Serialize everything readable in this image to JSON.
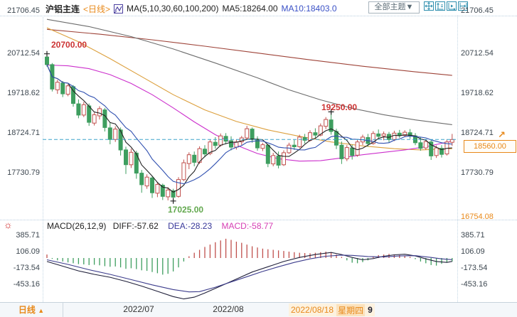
{
  "header": {
    "symbol": "沪铝主连",
    "period_tag": "<日线>",
    "ma_group": "MA(5,10,30,60,100,200)",
    "ma5_label": "MA5:18264.00",
    "ma10_label": "MA10:18403.0",
    "theme_dropdown": "全部主题▼"
  },
  "axes": {
    "price": [
      "21706.45",
      "20712.54",
      "19718.62",
      "18724.71",
      "17730.79"
    ],
    "price_lower": "16754.08",
    "macd": [
      "385.71",
      "106.09",
      "-173.54",
      "-453.16"
    ]
  },
  "price_tag": "18560.00",
  "jump_arrow": "↗",
  "sun_icon": "☼",
  "macd_header": {
    "title": "MACD(26,12,9)",
    "diff": "DIFF:-57.62",
    "dea": "DEA:-28.23",
    "macd": "MACD:-58.77"
  },
  "bottom": {
    "period": "日线",
    "period_arrow": "▲",
    "months": [
      "2022/07",
      "2022/08"
    ],
    "date": "2022/08/18",
    "weekday": "星期四",
    "session": "9"
  },
  "chart_data": {
    "type": "candlestick+macd",
    "title": "沪铝主连 日线",
    "legend": [
      "MA5",
      "MA10",
      "MA30",
      "MA60",
      "MA100",
      "MA200"
    ],
    "price_axis_ticks": [
      21706.45,
      20712.54,
      19718.62,
      18724.71,
      17730.79,
      16754.08
    ],
    "macd_axis_ticks": [
      385.71,
      106.09,
      -173.54,
      -453.16
    ],
    "x_axis_labels": [
      "2022/07",
      "2022/08"
    ],
    "crosshair_date": "2022/08/18 星期四 9",
    "last_price": 18560.0,
    "colors": {
      "up": "#c0504d",
      "down": "#3e9e5f",
      "ma5": "#222222",
      "ma10": "#3050b0",
      "ma30": "#cc2fcc",
      "ma60": "#dc9f3c",
      "ma100": "#6d6d6d",
      "ma200": "#9e4338",
      "dash": "#3fa3cc",
      "diff": "#20203a",
      "dea": "#3c3c8c"
    },
    "annotations": [
      {
        "label": "20700.00",
        "index": 0,
        "price": 20700,
        "anchor": "high",
        "color": "#cc3333"
      },
      {
        "label": "19250.00",
        "index": 54,
        "price": 19250,
        "anchor": "high",
        "color": "#cc3333"
      },
      {
        "label": "17025.00",
        "index": 24,
        "price": 17025,
        "anchor": "low",
        "color": "#62a84e"
      }
    ],
    "candles": [
      [
        20620,
        20700,
        20380,
        20430
      ],
      [
        20430,
        20470,
        19760,
        19820
      ],
      [
        19800,
        20050,
        19700,
        19990
      ],
      [
        19970,
        20020,
        19620,
        19700
      ],
      [
        19690,
        19940,
        19640,
        19900
      ],
      [
        19880,
        19920,
        19380,
        19460
      ],
      [
        19450,
        19560,
        19090,
        19170
      ],
      [
        19170,
        19500,
        19120,
        19430
      ],
      [
        19400,
        19460,
        18900,
        18990
      ],
      [
        18970,
        19230,
        18910,
        19180
      ],
      [
        19150,
        19390,
        19060,
        19330
      ],
      [
        19300,
        19350,
        18760,
        18860
      ],
      [
        18850,
        18980,
        18440,
        18560
      ],
      [
        18560,
        18890,
        18500,
        18820
      ],
      [
        18800,
        18860,
        18160,
        18300
      ],
      [
        18300,
        18380,
        17700,
        17930
      ],
      [
        17930,
        18330,
        17850,
        18240
      ],
      [
        18220,
        18280,
        17580,
        17720
      ],
      [
        17720,
        17800,
        17230,
        17430
      ],
      [
        17400,
        17690,
        17330,
        17620
      ],
      [
        17600,
        17640,
        17100,
        17230
      ],
      [
        17220,
        17500,
        17120,
        17440
      ],
      [
        17420,
        17460,
        17050,
        17140
      ],
      [
        17130,
        17370,
        17040,
        17300
      ],
      [
        17280,
        17330,
        17025,
        17120
      ],
      [
        17140,
        17620,
        17110,
        17560
      ],
      [
        17560,
        18060,
        17520,
        17980
      ],
      [
        17960,
        18240,
        17820,
        18180
      ],
      [
        18170,
        18260,
        17890,
        17990
      ],
      [
        17990,
        18390,
        17950,
        18330
      ],
      [
        18320,
        18420,
        18120,
        18200
      ],
      [
        18210,
        18560,
        18170,
        18500
      ],
      [
        18490,
        18620,
        18330,
        18410
      ],
      [
        18420,
        18710,
        18380,
        18650
      ],
      [
        18640,
        18720,
        18440,
        18520
      ],
      [
        18530,
        18640,
        18290,
        18370
      ],
      [
        18370,
        18560,
        18310,
        18500
      ],
      [
        18500,
        18650,
        18420,
        18600
      ],
      [
        18600,
        18900,
        18560,
        18830
      ],
      [
        18820,
        18860,
        18480,
        18560
      ],
      [
        18550,
        18640,
        18280,
        18350
      ],
      [
        18340,
        18480,
        18270,
        18430
      ],
      [
        18420,
        18450,
        17870,
        17960
      ],
      [
        17950,
        18230,
        17890,
        18160
      ],
      [
        18150,
        18260,
        17840,
        17920
      ],
      [
        17930,
        18290,
        17900,
        18230
      ],
      [
        18230,
        18480,
        18200,
        18420
      ],
      [
        18420,
        18550,
        18300,
        18380
      ],
      [
        18380,
        18680,
        18350,
        18620
      ],
      [
        18610,
        18700,
        18460,
        18540
      ],
      [
        18540,
        18790,
        18510,
        18730
      ],
      [
        18730,
        18840,
        18600,
        18670
      ],
      [
        18670,
        18960,
        18640,
        18900
      ],
      [
        18890,
        19120,
        18820,
        19060
      ],
      [
        19050,
        19250,
        18680,
        18760
      ],
      [
        18760,
        18830,
        18320,
        18420
      ],
      [
        18420,
        18510,
        17950,
        18080
      ],
      [
        18080,
        18420,
        18020,
        18360
      ],
      [
        18350,
        18430,
        18060,
        18160
      ],
      [
        18170,
        18560,
        18130,
        18500
      ],
      [
        18500,
        18680,
        18420,
        18620
      ],
      [
        18610,
        18700,
        18380,
        18460
      ],
      [
        18460,
        18770,
        18430,
        18710
      ],
      [
        18700,
        18810,
        18570,
        18640
      ],
      [
        18650,
        18760,
        18540,
        18700
      ],
      [
        18690,
        18750,
        18480,
        18560
      ],
      [
        18560,
        18780,
        18520,
        18720
      ],
      [
        18720,
        18800,
        18600,
        18660
      ],
      [
        18660,
        18790,
        18620,
        18740
      ],
      [
        18730,
        18820,
        18580,
        18650
      ],
      [
        18650,
        18720,
        18420,
        18480
      ],
      [
        18480,
        18620,
        18280,
        18340
      ],
      [
        18350,
        18570,
        18300,
        18510
      ],
      [
        18500,
        18540,
        18050,
        18150
      ],
      [
        18160,
        18410,
        18100,
        18350
      ],
      [
        18340,
        18420,
        18110,
        18190
      ],
      [
        18200,
        18560,
        18160,
        18500
      ],
      [
        18490,
        18700,
        18400,
        18560
      ]
    ],
    "ma_overlays": [
      {
        "name": "MA200",
        "color": "#9e4338",
        "points": [
          [
            0,
            21310
          ],
          [
            10,
            21190
          ],
          [
            20,
            21050
          ],
          [
            30,
            20890
          ],
          [
            40,
            20720
          ],
          [
            50,
            20550
          ],
          [
            60,
            20390
          ],
          [
            70,
            20250
          ],
          [
            77,
            20160
          ]
        ]
      },
      {
        "name": "MA100",
        "color": "#6d6d6d",
        "points": [
          [
            0,
            21560
          ],
          [
            8,
            21380
          ],
          [
            16,
            21130
          ],
          [
            24,
            20820
          ],
          [
            32,
            20470
          ],
          [
            40,
            20100
          ],
          [
            46,
            19800
          ],
          [
            52,
            19550
          ],
          [
            58,
            19340
          ],
          [
            64,
            19180
          ],
          [
            70,
            19050
          ],
          [
            77,
            18930
          ]
        ]
      },
      {
        "name": "MA60",
        "color": "#dc9f3c",
        "points": [
          [
            0,
            21350
          ],
          [
            6,
            21000
          ],
          [
            12,
            20580
          ],
          [
            18,
            20130
          ],
          [
            24,
            19680
          ],
          [
            30,
            19300
          ],
          [
            36,
            19010
          ],
          [
            42,
            18800
          ],
          [
            48,
            18640
          ],
          [
            54,
            18500
          ],
          [
            60,
            18400
          ],
          [
            66,
            18330
          ],
          [
            71,
            18300
          ],
          [
            77,
            18330
          ]
        ]
      },
      {
        "name": "MA30",
        "color": "#cc2fcc",
        "points": [
          [
            0,
            20420
          ],
          [
            4,
            20400
          ],
          [
            8,
            20330
          ],
          [
            12,
            20180
          ],
          [
            16,
            19960
          ],
          [
            20,
            19680
          ],
          [
            24,
            19350
          ],
          [
            28,
            19000
          ],
          [
            32,
            18680
          ],
          [
            36,
            18420
          ],
          [
            40,
            18210
          ],
          [
            44,
            18080
          ],
          [
            48,
            18020
          ],
          [
            52,
            18030
          ],
          [
            56,
            18100
          ],
          [
            60,
            18180
          ],
          [
            64,
            18240
          ],
          [
            68,
            18300
          ],
          [
            72,
            18380
          ],
          [
            77,
            18520
          ]
        ]
      }
    ],
    "macd": {
      "params": "MACD(26,12,9)",
      "diff": -57.62,
      "dea": -28.23,
      "macd": -58.77,
      "hist": [
        60,
        -15,
        -40,
        -60,
        -75,
        -90,
        -105,
        -110,
        -120,
        -115,
        -125,
        -140,
        -150,
        -145,
        -160,
        -185,
        -175,
        -190,
        -210,
        -220,
        -240,
        -260,
        -285,
        -270,
        -230,
        -160,
        -60,
        30,
        90,
        140,
        190,
        230,
        270,
        300,
        330,
        310,
        280,
        260,
        230,
        200,
        180,
        160,
        150,
        140,
        130,
        120,
        110,
        100,
        90,
        85,
        80,
        90,
        100,
        110,
        100,
        60,
        20,
        -40,
        -80,
        -90,
        -70,
        -40,
        20,
        50,
        60,
        70,
        60,
        50,
        40,
        20,
        -20,
        -60,
        -90,
        -120,
        -130,
        -100,
        -80,
        -59
      ],
      "diff_points": [
        [
          0,
          -60
        ],
        [
          3,
          -140
        ],
        [
          6,
          -220
        ],
        [
          9,
          -280
        ],
        [
          12,
          -330
        ],
        [
          15,
          -400
        ],
        [
          18,
          -480
        ],
        [
          21,
          -570
        ],
        [
          24,
          -660
        ],
        [
          26,
          -700
        ],
        [
          28,
          -670
        ],
        [
          30,
          -600
        ],
        [
          33,
          -480
        ],
        [
          36,
          -360
        ],
        [
          39,
          -240
        ],
        [
          42,
          -150
        ],
        [
          45,
          -60
        ],
        [
          48,
          10
        ],
        [
          51,
          60
        ],
        [
          54,
          95
        ],
        [
          56,
          60
        ],
        [
          58,
          10
        ],
        [
          60,
          -30
        ],
        [
          62,
          -10
        ],
        [
          64,
          30
        ],
        [
          66,
          55
        ],
        [
          68,
          65
        ],
        [
          70,
          35
        ],
        [
          72,
          -15
        ],
        [
          74,
          -60
        ],
        [
          76,
          -75
        ],
        [
          77,
          -58
        ]
      ],
      "dea_points": [
        [
          0,
          -30
        ],
        [
          4,
          -110
        ],
        [
          8,
          -200
        ],
        [
          12,
          -280
        ],
        [
          16,
          -370
        ],
        [
          20,
          -460
        ],
        [
          24,
          -540
        ],
        [
          27,
          -580
        ],
        [
          29,
          -575
        ],
        [
          32,
          -500
        ],
        [
          35,
          -410
        ],
        [
          38,
          -320
        ],
        [
          41,
          -230
        ],
        [
          44,
          -150
        ],
        [
          47,
          -75
        ],
        [
          50,
          -15
        ],
        [
          53,
          30
        ],
        [
          56,
          50
        ],
        [
          58,
          45
        ],
        [
          61,
          25
        ],
        [
          64,
          20
        ],
        [
          67,
          35
        ],
        [
          70,
          40
        ],
        [
          73,
          10
        ],
        [
          75,
          -15
        ],
        [
          77,
          -28
        ]
      ]
    }
  }
}
